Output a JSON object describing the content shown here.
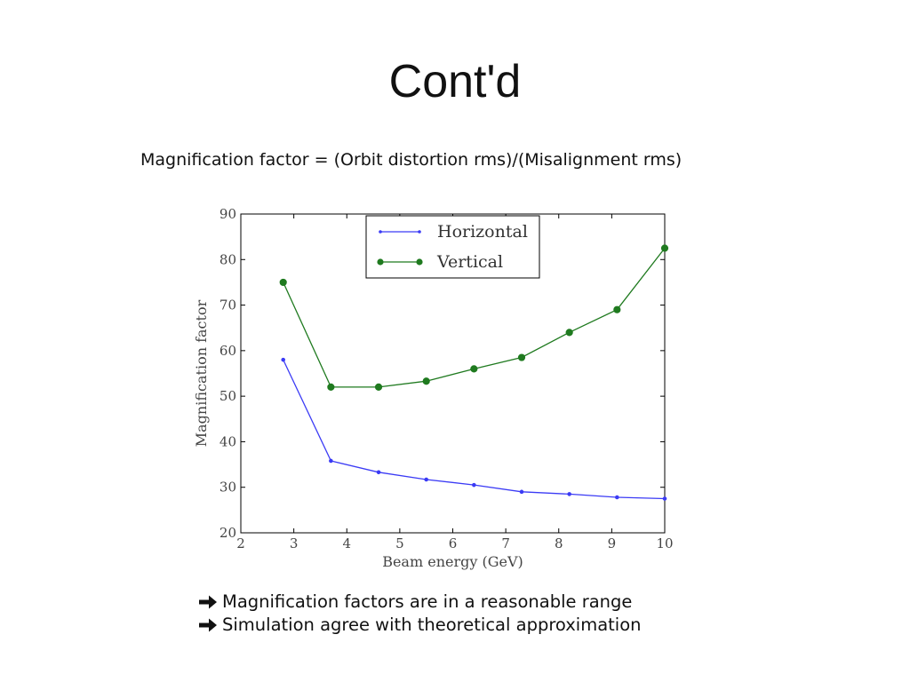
{
  "slide": {
    "title": "Cont'd",
    "subtitle": "Magnification factor = (Orbit distortion rms)/(Misalignment rms)",
    "bullets": [
      {
        "text": "Magnification factors are in a reasonable range",
        "icon": "arrow-right-icon"
      },
      {
        "text": "Simulation agree with theoretical approximation",
        "icon": "arrow-right-icon"
      }
    ]
  },
  "chart_data": {
    "type": "line",
    "title": "",
    "xlabel": "Beam energy (GeV)",
    "ylabel": "Magnification factor",
    "xlim": [
      2,
      10
    ],
    "ylim": [
      20,
      90
    ],
    "xticks": [
      2,
      3,
      4,
      5,
      6,
      7,
      8,
      9,
      10
    ],
    "yticks": [
      20,
      30,
      40,
      50,
      60,
      70,
      80,
      90
    ],
    "grid": false,
    "legend_position": "top-center",
    "x": [
      2.8,
      3.7,
      4.6,
      5.5,
      6.4,
      7.3,
      8.2,
      9.1,
      10.0
    ],
    "series": [
      {
        "name": "Horizontal",
        "color": "#3b3bf5",
        "marker": "small-dot",
        "values": [
          58.0,
          35.8,
          33.3,
          31.7,
          30.5,
          29.0,
          28.5,
          27.8,
          27.5
        ]
      },
      {
        "name": "Vertical",
        "color": "#1f7a1f",
        "marker": "dot",
        "values": [
          75.0,
          52.0,
          52.0,
          53.3,
          56.0,
          58.5,
          64.0,
          69.0,
          82.5
        ]
      }
    ]
  }
}
